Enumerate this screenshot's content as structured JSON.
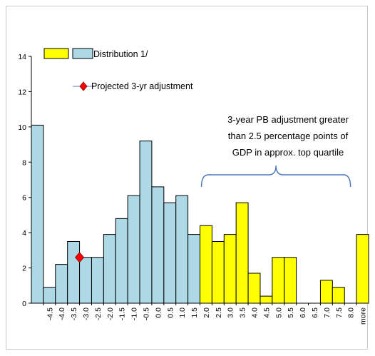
{
  "chart_data": {
    "type": "bar",
    "categories": [
      "-4.5",
      "-4.0",
      "-3.5",
      "-3.0",
      "-2.5",
      "-2.0",
      "-1.5",
      "-1.0",
      "-0.5",
      "0.0",
      "0.5",
      "1.0",
      "1.5",
      "2.0",
      "2.5",
      "3.0",
      "3.5",
      "4.0",
      "4.5",
      "5.0",
      "5.5",
      "6.0",
      "6.5",
      "7.0",
      "7.5",
      "8.0",
      "more"
    ],
    "first_bar_value": 10.1,
    "series": [
      {
        "name": "Distribution 1/",
        "values": [
          0.9,
          2.2,
          3.5,
          2.6,
          2.6,
          3.9,
          4.8,
          6.1,
          9.2,
          6.6,
          5.7,
          6.1,
          3.9,
          4.4,
          3.5,
          3.9,
          5.7,
          1.7,
          0.4,
          2.6,
          2.6,
          0,
          0,
          1.3,
          0.9,
          0,
          3.9
        ],
        "colors": {
          "below": "#add8e6",
          "above": "#ffff00"
        },
        "split_after_category": "1.5"
      },
      {
        "name": "Projected 3-yr adjustment",
        "type": "scatter",
        "x": "-3.0",
        "y": 2.6,
        "color": "#ff0000"
      }
    ],
    "yticks": [
      "0",
      "2",
      "4",
      "6",
      "8",
      "10",
      "12",
      "14"
    ],
    "ylim": [
      0,
      14
    ],
    "grid": false,
    "annotation": {
      "lines": [
        "3-year PB adjustment greater",
        "than 2.5 percentage points of",
        "GDP in approx. top quartile"
      ],
      "brace_from": "2.0",
      "brace_to": "8.0",
      "color": "#4a76b8"
    },
    "legend_placement": "top-left"
  }
}
